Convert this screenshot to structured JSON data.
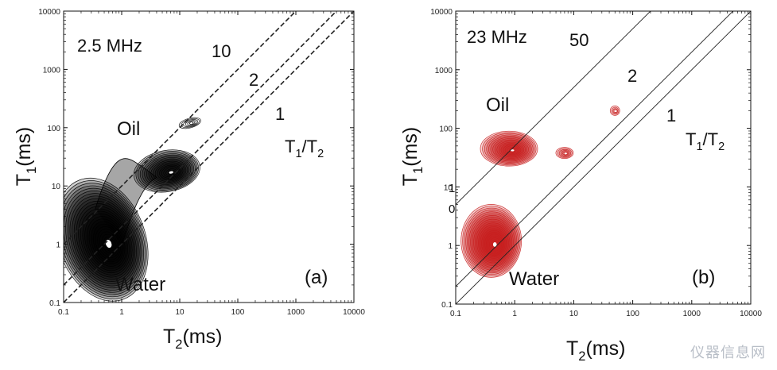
{
  "chart_data": [
    {
      "type": "contour",
      "panel": "(a)",
      "frequency": "2.5 MHz",
      "xlabel": "T2(ms)",
      "ylabel": "T1(ms)",
      "xscale": "log",
      "yscale": "log",
      "xlim": [
        0.1,
        10000
      ],
      "ylim": [
        0.1,
        10000
      ],
      "xticks": [
        "0.1",
        "1",
        "10",
        "100",
        "1000",
        "10000"
      ],
      "yticks": [
        "0.1",
        "1",
        "10",
        "100",
        "1000",
        "10000"
      ],
      "ratio_lines": [
        {
          "ratio": 10,
          "label": "10"
        },
        {
          "ratio": 2,
          "label": "2"
        },
        {
          "ratio": 1,
          "label": "1"
        }
      ],
      "ratio_title": "T1/T2",
      "line_style": "dashed",
      "contour_color": "#000000",
      "regions": [
        {
          "label": "Oil",
          "peaks": [
            {
              "t2": 6,
              "t1": 18
            },
            {
              "t2": 15,
              "t1": 120
            }
          ]
        },
        {
          "label": "Water",
          "peaks": [
            {
              "t2": 0.45,
              "t1": 1.2
            }
          ]
        }
      ]
    },
    {
      "type": "contour",
      "panel": "(b)",
      "frequency": "23 MHz",
      "xlabel": "T2(ms)",
      "ylabel": "T1(ms)",
      "xscale": "log",
      "yscale": "log",
      "xlim": [
        0.1,
        10000
      ],
      "ylim": [
        0.1,
        10000
      ],
      "xticks": [
        "0.1",
        "1",
        "10",
        "100",
        "1000",
        "10000"
      ],
      "yticks": [
        "0.1",
        "1",
        "10",
        "100",
        "1000",
        "10000"
      ],
      "ratio_lines": [
        {
          "ratio": 50,
          "label": "50"
        },
        {
          "ratio": 2,
          "label": "2"
        },
        {
          "ratio": 1,
          "label": "1"
        }
      ],
      "ratio_title": "T1/T2",
      "line_style": "solid",
      "contour_color": "#c81e1e",
      "regions": [
        {
          "label": "Oil",
          "peaks": [
            {
              "t2": 0.8,
              "t1": 45
            },
            {
              "t2": 7,
              "t1": 38
            },
            {
              "t2": 50,
              "t1": 200
            }
          ]
        },
        {
          "label": "Water",
          "peaks": [
            {
              "t2": 0.4,
              "t1": 1.2
            }
          ]
        }
      ],
      "stray_labels": [
        "1",
        "0"
      ]
    }
  ],
  "watermark": "仪器信息网"
}
